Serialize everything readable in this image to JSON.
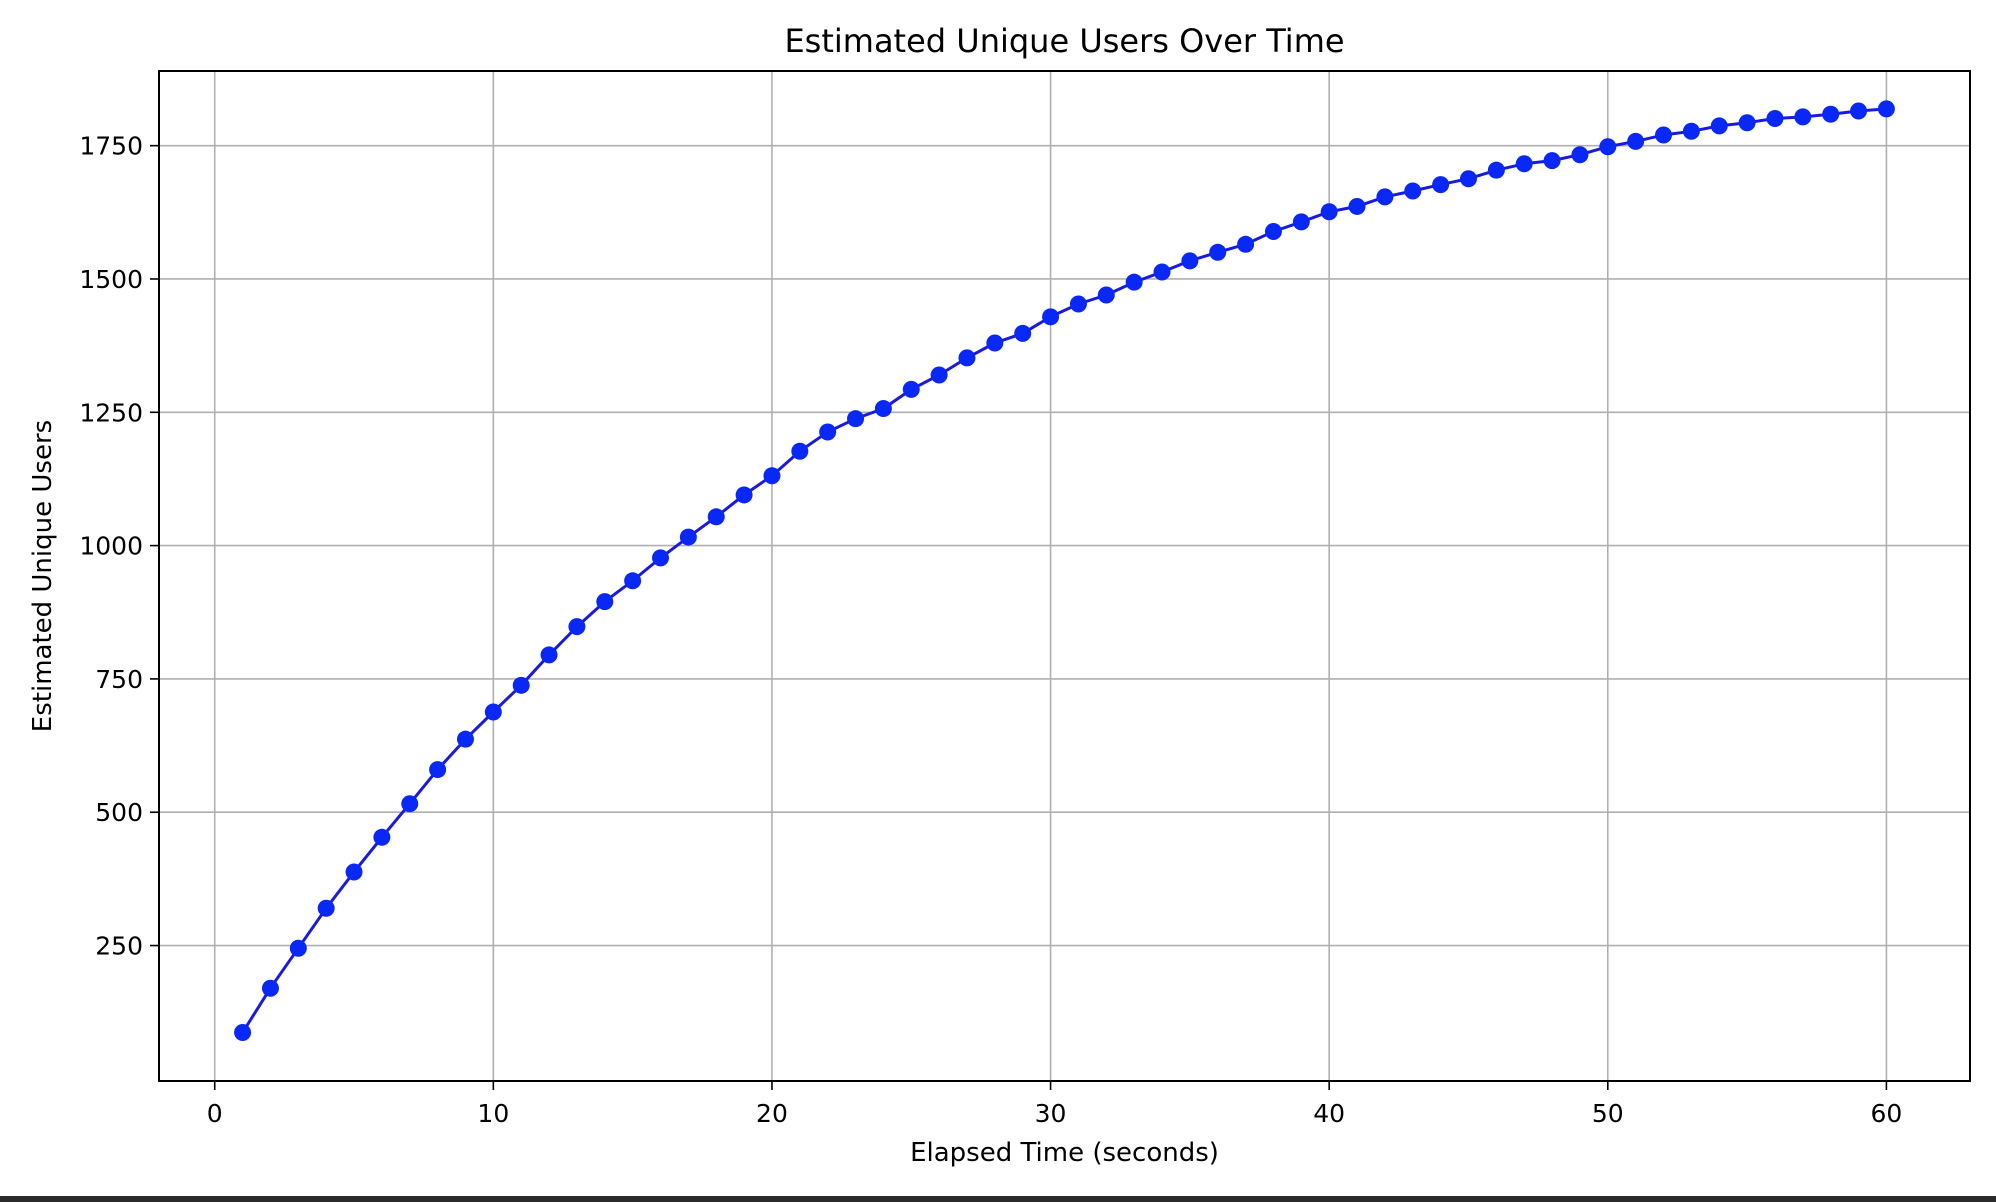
{
  "chart_data": {
    "type": "line",
    "title": "Estimated Unique Users Over Time",
    "xlabel": "Elapsed Time (seconds)",
    "ylabel": "Estimated Unique Users",
    "xlim": [
      -2,
      63
    ],
    "ylim": [
      -4,
      1890
    ],
    "xticks": [
      0,
      10,
      20,
      30,
      40,
      50,
      60
    ],
    "yticks": [
      250,
      500,
      750,
      1000,
      1250,
      1500,
      1750
    ],
    "grid": true,
    "line_color": "#1a1adb",
    "marker_color": "#0a28f5",
    "series": [
      {
        "x": [
          1,
          2,
          3,
          4,
          5,
          6,
          7,
          8,
          9,
          10,
          11,
          12,
          13,
          14,
          15,
          16,
          17,
          18,
          19,
          20,
          21,
          22,
          23,
          24,
          25,
          26,
          27,
          28,
          29,
          30,
          31,
          32,
          33,
          34,
          35,
          36,
          37,
          38,
          39,
          40,
          41,
          42,
          43,
          44,
          45,
          46,
          47,
          48,
          49,
          50,
          51,
          52,
          53,
          54,
          55,
          56,
          57,
          58,
          59,
          60
        ],
        "values": [
          87,
          170,
          245,
          320,
          388,
          453,
          516,
          580,
          637,
          688,
          738,
          795,
          848,
          895,
          934,
          977,
          1016,
          1054,
          1095,
          1131,
          1177,
          1213,
          1238,
          1257,
          1293,
          1320,
          1352,
          1380,
          1398,
          1429,
          1453,
          1470,
          1494,
          1513,
          1534,
          1550,
          1565,
          1589,
          1607,
          1626,
          1636,
          1654,
          1665,
          1677,
          1688,
          1704,
          1716,
          1722,
          1733,
          1748,
          1758,
          1770,
          1777,
          1787,
          1793,
          1801,
          1804,
          1809,
          1815,
          1819
        ]
      }
    ]
  }
}
